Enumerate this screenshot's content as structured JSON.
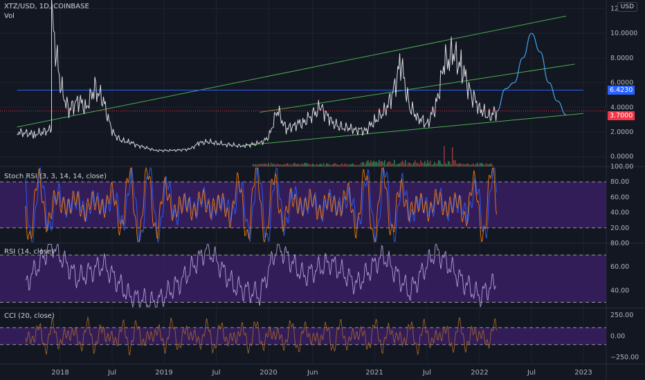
{
  "header": {
    "symbol": "XTZ/USD, 1D, COINBASE",
    "volume_label": "Vol",
    "currency": "USD"
  },
  "colors": {
    "background": "#131722",
    "grid": "#1e222d",
    "separator": "#2a2e39",
    "axis_text": "#b2b5be",
    "channel": "#4caf50",
    "support_line": "#2962ff",
    "current_line": "#f23645",
    "projection": "#42a5f5",
    "price": "#d9dbe0",
    "volume_up": "#2e7d4f",
    "volume_down": "#8b3a3a",
    "stoch_k": "#2962ff",
    "stoch_d": "#f57c00",
    "rsi": "#b39ddb",
    "cci": "#a0642a",
    "band_fill": "#3a1f63"
  },
  "price_tags": {
    "support": "6.4230",
    "current": "3.7000"
  },
  "chart_data": [
    {
      "type": "line",
      "title": "XTZ/USD, 1D, COINBASE",
      "ylabel": "USD",
      "ylim": [
        -0.8,
        12.7
      ],
      "yticks": [
        12,
        10,
        8,
        6,
        4,
        2,
        0
      ],
      "ytick_labels": [
        "12.0000",
        "10.0000",
        "8.0000",
        "6.0000",
        "4.0000",
        "2.0000",
        "0.0000"
      ],
      "x_labels": [
        "2018",
        "Jul",
        "2019",
        "Jul",
        "2020",
        "Jun",
        "2021",
        "Jul",
        "2022",
        "Jul",
        "2023"
      ],
      "series": [
        {
          "name": "XTZ/USD",
          "x": [
            "2017-08",
            "2017-10",
            "2017-12",
            "2017-12",
            "2018-01",
            "2018-02",
            "2018-03",
            "2018-04",
            "2018-05",
            "2018-06",
            "2018-07",
            "2018-08",
            "2018-09",
            "2018-10",
            "2018-12",
            "2019-02",
            "2019-04",
            "2019-05",
            "2019-06",
            "2019-08",
            "2019-10",
            "2019-12",
            "2020-01",
            "2020-02",
            "2020-03",
            "2020-04",
            "2020-05",
            "2020-07",
            "2020-08",
            "2020-09",
            "2020-10",
            "2020-11",
            "2020-12",
            "2021-01",
            "2021-02",
            "2021-03",
            "2021-04",
            "2021-05",
            "2021-06",
            "2021-07",
            "2021-08",
            "2021-09",
            "2021-10",
            "2021-11",
            "2021-12",
            "2022-01",
            "2022-02",
            "2022-03"
          ],
          "values": [
            2.0,
            1.8,
            2.2,
            11.5,
            5.8,
            3.7,
            4.6,
            4.0,
            5.6,
            4.5,
            2.0,
            1.3,
            1.2,
            0.9,
            0.5,
            0.5,
            0.6,
            1.1,
            1.2,
            1.0,
            0.85,
            1.1,
            1.5,
            3.8,
            2.2,
            2.6,
            2.8,
            4.0,
            2.9,
            2.4,
            2.3,
            2.2,
            2.1,
            2.9,
            3.5,
            4.8,
            7.7,
            4.0,
            3.2,
            2.6,
            4.1,
            7.6,
            8.3,
            7.2,
            5.1,
            4.0,
            3.2,
            3.7
          ]
        },
        {
          "name": "Projection",
          "x": [
            "2022-03",
            "2022-04",
            "2022-05",
            "2022-06",
            "2022-07",
            "2022-08",
            "2022-09",
            "2022-10",
            "2022-11"
          ],
          "values": [
            3.7,
            5.5,
            6.0,
            8.0,
            10.0,
            8.5,
            6.0,
            4.5,
            3.4
          ]
        }
      ]
    },
    {
      "type": "line",
      "title": "Stoch RSI (3, 3, 14, 14, close)",
      "ylim": [
        0,
        100
      ],
      "yticks": [
        100,
        80,
        60,
        40,
        20
      ],
      "ytick_labels": [
        "100.00",
        "80.00",
        "60.00",
        "40.00",
        "20.00"
      ],
      "bands": [
        20,
        80
      ]
    },
    {
      "type": "line",
      "title": "RSI (14, close)",
      "ylim": [
        25,
        80
      ],
      "yticks": [
        80,
        60,
        40
      ],
      "ytick_labels": [
        "80.00",
        "60.00",
        "40.00"
      ],
      "bands": [
        30,
        70
      ],
      "series": [
        {
          "name": "RSI",
          "x": [
            "2017-09",
            "2017-12",
            "2018-03",
            "2018-06",
            "2018-09",
            "2018-12",
            "2019-03",
            "2019-06",
            "2019-09",
            "2019-12",
            "2020-02",
            "2020-05",
            "2020-08",
            "2020-11",
            "2021-02",
            "2021-05",
            "2021-08",
            "2021-11",
            "2022-01",
            "2022-03"
          ],
          "values": [
            45,
            79,
            50,
            62,
            35,
            29,
            48,
            76,
            44,
            36,
            78,
            52,
            64,
            45,
            70,
            38,
            74,
            48,
            35,
            48
          ]
        }
      ]
    },
    {
      "type": "line",
      "title": "CCI (20, close)",
      "ylim": [
        -330,
        330
      ],
      "yticks": [
        250,
        0,
        -250
      ],
      "ytick_labels": [
        "250.00",
        "0.00",
        "−250.00"
      ],
      "bands": [
        -100,
        100
      ]
    }
  ]
}
